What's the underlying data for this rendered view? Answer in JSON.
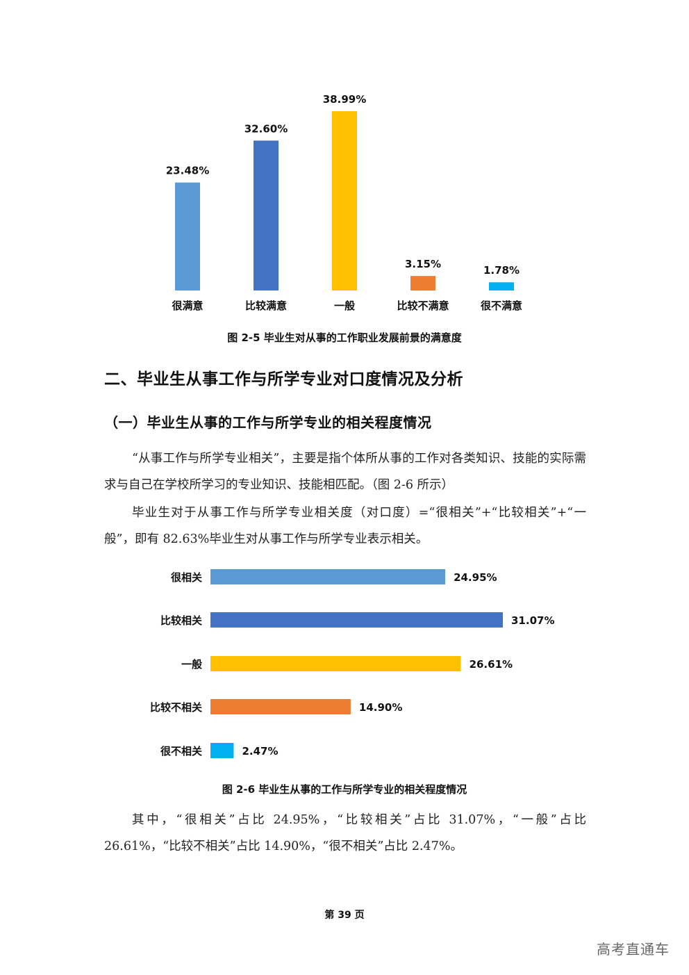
{
  "chart_data": [
    {
      "type": "bar",
      "orientation": "vertical",
      "title": "图 2-5 毕业生对从事的工作职业发展前景的满意度",
      "categories": [
        "很满意",
        "比较满意",
        "一般",
        "比较不满意",
        "很不满意"
      ],
      "values": [
        23.48,
        32.6,
        38.99,
        3.15,
        1.78
      ],
      "labels": [
        "23.48%",
        "32.60%",
        "38.99%",
        "3.15%",
        "1.78%"
      ],
      "colors": [
        "#5B9BD5",
        "#4472C4",
        "#FFC000",
        "#ED7D31",
        "#00B0F0"
      ],
      "ylim": [
        0,
        40
      ],
      "grid": false,
      "xlabel": "",
      "ylabel": ""
    },
    {
      "type": "bar",
      "orientation": "horizontal",
      "title": "图 2-6 毕业生从事的工作与所学专业的相关程度情况",
      "categories": [
        "很相关",
        "比较相关",
        "一般",
        "比较不相关",
        "很不相关"
      ],
      "values": [
        24.95,
        31.07,
        26.61,
        14.9,
        2.47
      ],
      "labels": [
        "24.95%",
        "31.07%",
        "26.61%",
        "14.90%",
        "2.47%"
      ],
      "colors": [
        "#5B9BD5",
        "#4472C4",
        "#FFC000",
        "#ED7D31",
        "#00B0F0"
      ],
      "xlim": [
        0,
        31.07
      ],
      "grid": false,
      "xlabel": "",
      "ylabel": ""
    }
  ],
  "captions": {
    "fig5": "图 2-5  毕业生对从事的工作职业发展前景的满意度",
    "fig6": "图 2-6  毕业生从事的工作与所学专业的相关程度情况"
  },
  "headings": {
    "section": "二、毕业生从事工作与所学专业对口度情况及分析",
    "subsection": "（一）毕业生从事的工作与所学专业的相关程度情况"
  },
  "paragraphs": {
    "p1": "“从事工作与所学专业相关”，主要是指个体所从事的工作对各类知识、技能的实际需求与自己在学校所学习的专业知识、技能相匹配。（图 2-6 所示）",
    "p2": "毕业生对于从事工作与所学专业相关度（对口度）=“很相关”+“比较相关”+“一般”，即有 82.63%毕业生对从事工作与所学专业表示相关。",
    "p3": "其中，“很相关”占比 24.95%，“比较相关”占比 31.07%，“一般”占比 26.61%，“比较不相关”占比 14.90%，“很不相关”占比 2.47%。"
  },
  "footer": {
    "page": "第 39 页"
  },
  "watermark": "高考直通车"
}
